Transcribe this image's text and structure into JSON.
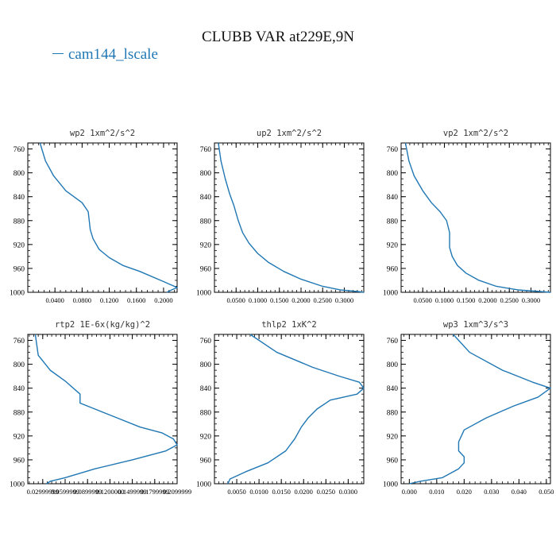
{
  "figure": {
    "title": "CLUBB VAR at229E,9N",
    "legend_label": "cam144_lscale",
    "series_color": "#1f77b4"
  },
  "chart_data": [
    {
      "type": "line",
      "title": "wp2   1xm^2/s^2",
      "ylim": [
        1000,
        750
      ],
      "xlim": [
        0.0,
        0.22
      ],
      "yticks": [
        "760",
        "800",
        "840",
        "880",
        "920",
        "960",
        "1000"
      ],
      "xticks": [
        {
          "v": 0.04,
          "label": "0.0400"
        },
        {
          "v": 0.08,
          "label": "0.0800"
        },
        {
          "v": 0.12,
          "label": "0.1200"
        },
        {
          "v": 0.16,
          "label": "0.1600"
        },
        {
          "v": 0.2,
          "label": "0.2000"
        }
      ],
      "series": [
        {
          "points": [
            [
              0.018,
              750
            ],
            [
              0.026,
              780
            ],
            [
              0.038,
              805
            ],
            [
              0.056,
              830
            ],
            [
              0.08,
              850
            ],
            [
              0.089,
              865
            ],
            [
              0.092,
              895
            ],
            [
              0.096,
              910
            ],
            [
              0.105,
              928
            ],
            [
              0.12,
              942
            ],
            [
              0.14,
              955
            ],
            [
              0.165,
              965
            ],
            [
              0.2,
              982
            ],
            [
              0.22,
              992
            ],
            [
              0.21,
              997
            ],
            [
              0.205,
              1000
            ]
          ]
        }
      ]
    },
    {
      "type": "line",
      "title": "up2   1xm^2/s^2",
      "ylim": [
        1000,
        750
      ],
      "xlim": [
        0.0,
        0.345
      ],
      "yticks": [
        "760",
        "800",
        "840",
        "880",
        "920",
        "960",
        "1000"
      ],
      "xticks": [
        {
          "v": 0.05,
          "label": "0.0500"
        },
        {
          "v": 0.1,
          "label": "0.1000"
        },
        {
          "v": 0.15,
          "label": "0.1500"
        },
        {
          "v": 0.2,
          "label": "0.2000"
        },
        {
          "v": 0.25,
          "label": "0.2500"
        },
        {
          "v": 0.3,
          "label": "0.3000"
        }
      ],
      "series": [
        {
          "points": [
            [
              0.009,
              750
            ],
            [
              0.015,
              780
            ],
            [
              0.025,
              810
            ],
            [
              0.035,
              835
            ],
            [
              0.045,
              855
            ],
            [
              0.055,
              880
            ],
            [
              0.065,
              900
            ],
            [
              0.08,
              918
            ],
            [
              0.1,
              935
            ],
            [
              0.125,
              950
            ],
            [
              0.16,
              965
            ],
            [
              0.2,
              978
            ],
            [
              0.25,
              990
            ],
            [
              0.29,
              996
            ],
            [
              0.335,
              999
            ],
            [
              0.345,
              1000
            ]
          ]
        }
      ]
    },
    {
      "type": "line",
      "title": "vp2   1xm^2/s^2",
      "ylim": [
        1000,
        750
      ],
      "xlim": [
        0.0,
        0.345
      ],
      "yticks": [
        "760",
        "800",
        "840",
        "880",
        "920",
        "960",
        "1000"
      ],
      "xticks": [
        {
          "v": 0.05,
          "label": "0.0500"
        },
        {
          "v": 0.1,
          "label": "0.1000"
        },
        {
          "v": 0.15,
          "label": "0.1500"
        },
        {
          "v": 0.2,
          "label": "0.2000"
        },
        {
          "v": 0.25,
          "label": "0.2500"
        },
        {
          "v": 0.3,
          "label": "0.3000"
        }
      ],
      "series": [
        {
          "points": [
            [
              0.01,
              750
            ],
            [
              0.018,
              780
            ],
            [
              0.03,
              805
            ],
            [
              0.05,
              830
            ],
            [
              0.07,
              850
            ],
            [
              0.09,
              865
            ],
            [
              0.105,
              880
            ],
            [
              0.112,
              900
            ],
            [
              0.112,
              925
            ],
            [
              0.118,
              940
            ],
            [
              0.13,
              955
            ],
            [
              0.15,
              968
            ],
            [
              0.18,
              980
            ],
            [
              0.22,
              990
            ],
            [
              0.27,
              996
            ],
            [
              0.345,
              1000
            ]
          ]
        }
      ]
    },
    {
      "type": "line",
      "title": "rtp2   1E-6x(kg/kg)^2",
      "ylim": [
        1000,
        750
      ],
      "xlim": [
        0.01,
        0.21
      ],
      "yticks": [
        "760",
        "800",
        "840",
        "880",
        "920",
        "960",
        "1000"
      ],
      "xticks": [
        {
          "v": 0.03,
          "label": "0.02999999"
        },
        {
          "v": 0.06,
          "label": "0.0599999"
        },
        {
          "v": 0.09,
          "label": "0.0899999"
        },
        {
          "v": 0.12,
          "label": "0.1200000"
        },
        {
          "v": 0.15,
          "label": "0.1499999"
        },
        {
          "v": 0.18,
          "label": "0.1799999"
        },
        {
          "v": 0.21,
          "label": "0.2099999"
        }
      ],
      "series": [
        {
          "points": [
            [
              0.02,
              750
            ],
            [
              0.024,
              785
            ],
            [
              0.04,
              810
            ],
            [
              0.06,
              828
            ],
            [
              0.08,
              850
            ],
            [
              0.08,
              865
            ],
            [
              0.1,
              875
            ],
            [
              0.13,
              890
            ],
            [
              0.16,
              905
            ],
            [
              0.19,
              915
            ],
            [
              0.205,
              925
            ],
            [
              0.21,
              935
            ],
            [
              0.195,
              945
            ],
            [
              0.15,
              960
            ],
            [
              0.1,
              975
            ],
            [
              0.06,
              990
            ],
            [
              0.04,
              996
            ],
            [
              0.035,
              1000
            ]
          ]
        }
      ]
    },
    {
      "type": "line",
      "title": "thlp2   1xK^2",
      "ylim": [
        1000,
        750
      ],
      "xlim": [
        0.0,
        0.0335
      ],
      "yticks": [
        "760",
        "800",
        "840",
        "880",
        "920",
        "960",
        "1000"
      ],
      "xticks": [
        {
          "v": 0.005,
          "label": "0.0050"
        },
        {
          "v": 0.01,
          "label": "0.0100"
        },
        {
          "v": 0.015,
          "label": "0.0150"
        },
        {
          "v": 0.02,
          "label": "0.0200"
        },
        {
          "v": 0.025,
          "label": "0.0250"
        },
        {
          "v": 0.03,
          "label": "0.0300"
        }
      ],
      "series": [
        {
          "points": [
            [
              0.008,
              750
            ],
            [
              0.014,
              780
            ],
            [
              0.022,
              805
            ],
            [
              0.028,
              820
            ],
            [
              0.0325,
              830
            ],
            [
              0.0335,
              840
            ],
            [
              0.032,
              850
            ],
            [
              0.026,
              860
            ],
            [
              0.023,
              875
            ],
            [
              0.021,
              890
            ],
            [
              0.0195,
              905
            ],
            [
              0.018,
              925
            ],
            [
              0.016,
              945
            ],
            [
              0.012,
              965
            ],
            [
              0.007,
              980
            ],
            [
              0.0035,
              992
            ],
            [
              0.003,
              1000
            ]
          ]
        }
      ]
    },
    {
      "type": "line",
      "title": "wp3   1xm^3/s^3",
      "ylim": [
        1000,
        750
      ],
      "xlim": [
        -0.003,
        0.0515
      ],
      "yticks": [
        "760",
        "800",
        "840",
        "880",
        "920",
        "960",
        "1000"
      ],
      "xticks": [
        {
          "v": 0.0,
          "label": "0.000"
        },
        {
          "v": 0.01,
          "label": "0.010"
        },
        {
          "v": 0.02,
          "label": "0.020"
        },
        {
          "v": 0.03,
          "label": "0.030"
        },
        {
          "v": 0.04,
          "label": "0.040"
        },
        {
          "v": 0.05,
          "label": "0.050"
        }
      ],
      "series": [
        {
          "points": [
            [
              0.016,
              750
            ],
            [
              0.022,
              780
            ],
            [
              0.034,
              810
            ],
            [
              0.045,
              830
            ],
            [
              0.0515,
              840
            ],
            [
              0.047,
              855
            ],
            [
              0.038,
              870
            ],
            [
              0.028,
              890
            ],
            [
              0.02,
              910
            ],
            [
              0.018,
              930
            ],
            [
              0.018,
              945
            ],
            [
              0.02,
              955
            ],
            [
              0.02,
              965
            ],
            [
              0.018,
              975
            ],
            [
              0.012,
              990
            ],
            [
              0.004,
              996
            ],
            [
              0.0,
              1000
            ]
          ]
        }
      ]
    }
  ]
}
